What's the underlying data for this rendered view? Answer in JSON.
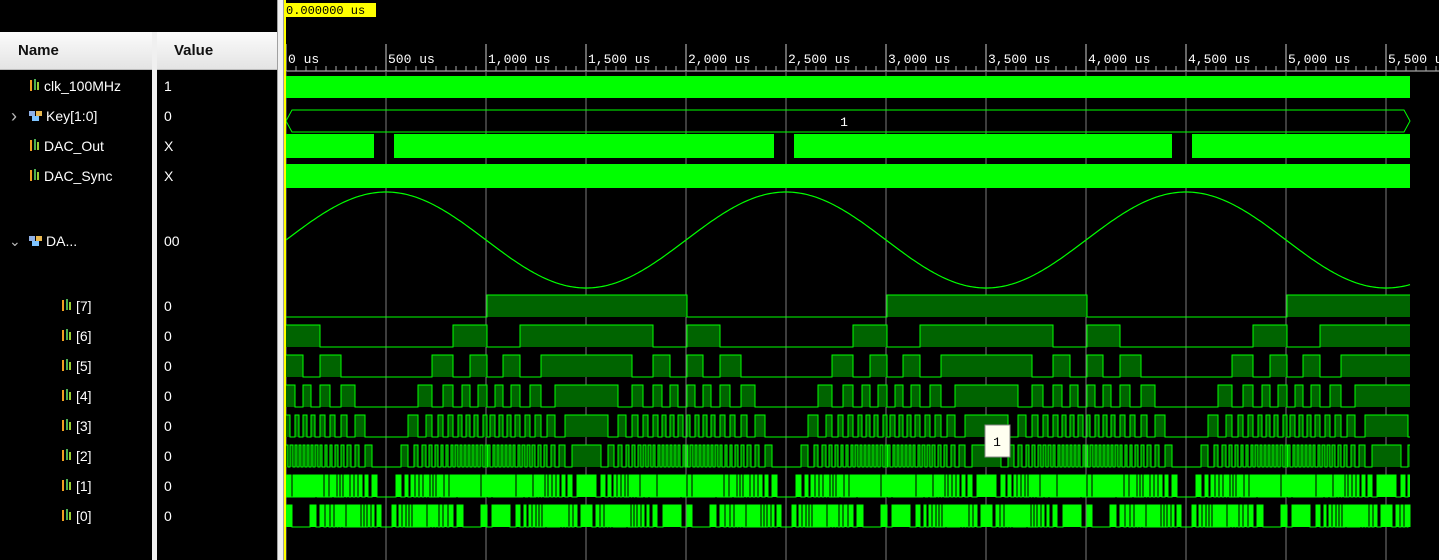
{
  "columns": {
    "name": "Name",
    "value": "Value"
  },
  "cursor": {
    "time_label": "0.000000 us"
  },
  "timeline": {
    "unit": "us",
    "ticks": [
      "0 us",
      "500 us",
      "1,000 us",
      "1,500 us",
      "2,000 us",
      "2,500 us",
      "3,000 us",
      "3,500 us",
      "4,000 us",
      "4,500 us",
      "5,000 us",
      "5,500 us"
    ]
  },
  "signals": [
    {
      "name": "clk_100MHz",
      "value": "1",
      "icon": "wire-icon"
    },
    {
      "name": "Key[1:0]",
      "value": "0",
      "icon": "bus-icon",
      "bus_value": "1"
    },
    {
      "name": "DAC_Out",
      "value": "X",
      "icon": "wire-icon"
    },
    {
      "name": "DAC_Sync",
      "value": "X",
      "icon": "wire-icon"
    },
    {
      "name": "DA...",
      "value": "00",
      "icon": "bus-icon"
    },
    {
      "name": "[7]",
      "value": "0",
      "icon": "wire-icon"
    },
    {
      "name": "[6]",
      "value": "0",
      "icon": "wire-icon"
    },
    {
      "name": "[5]",
      "value": "0",
      "icon": "wire-icon"
    },
    {
      "name": "[4]",
      "value": "0",
      "icon": "wire-icon"
    },
    {
      "name": "[3]",
      "value": "0",
      "icon": "wire-icon"
    },
    {
      "name": "[2]",
      "value": "0",
      "icon": "wire-icon"
    },
    {
      "name": "[1]",
      "value": "0",
      "icon": "wire-icon"
    },
    {
      "name": "[0]",
      "value": "0",
      "icon": "wire-icon"
    }
  ],
  "marker": {
    "label": "1"
  },
  "colors": {
    "wave": "#00ff00",
    "wave_dim": "#006400",
    "grid": "#7a7a7a",
    "cursor": "#ffff00"
  }
}
